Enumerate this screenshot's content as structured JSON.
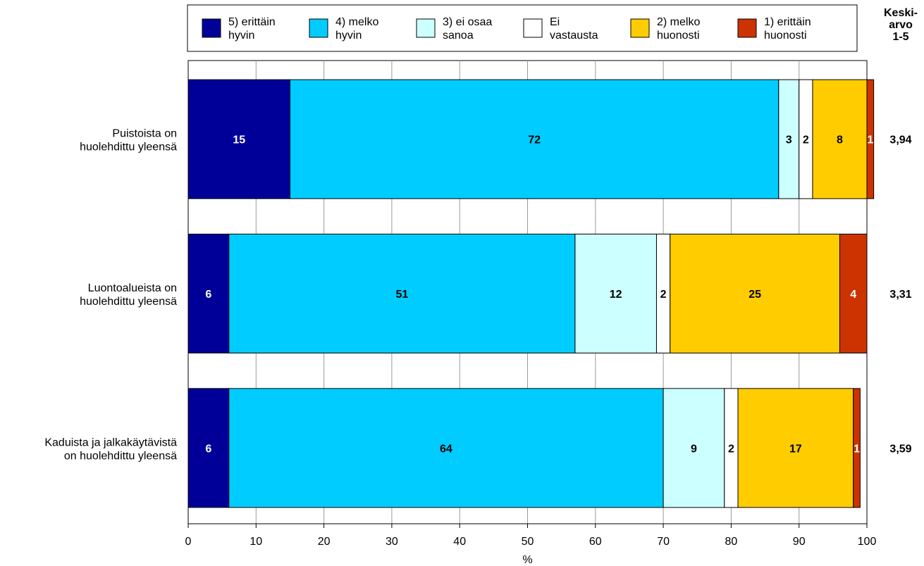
{
  "chart_data": {
    "type": "bar",
    "orientation": "horizontal",
    "stacked": true,
    "xlabel": "%",
    "xlim": [
      0,
      100
    ],
    "xticks": [
      "0",
      "10",
      "20",
      "30",
      "40",
      "50",
      "60",
      "70",
      "80",
      "90",
      "100"
    ],
    "grid": true,
    "legend_position": "top",
    "mean_header": [
      "Keski-",
      "arvo",
      "1-5"
    ],
    "categories": [
      [
        "Puistoista on",
        "huolehdittu yleensä"
      ],
      [
        "Luontoalueista on",
        "huolehdittu yleensä"
      ],
      [
        "Kaduista ja jalkakäytävistä",
        "on huolehdittu yleensä"
      ]
    ],
    "means": [
      "3,94",
      "3,31",
      "3,59"
    ],
    "series": [
      {
        "name": [
          "5) erittäin",
          "hyvin"
        ],
        "color": "#000099",
        "label_color": "#ffffff",
        "values": [
          15,
          6,
          6
        ],
        "labels": [
          "15",
          "6",
          "6"
        ]
      },
      {
        "name": [
          "4) melko",
          "hyvin"
        ],
        "color": "#00CCFF",
        "label_color": "#000000",
        "values": [
          72,
          51,
          64
        ],
        "labels": [
          "72",
          "51",
          "64"
        ]
      },
      {
        "name": [
          "3) ei osaa",
          "sanoa"
        ],
        "color": "#CCFFFF",
        "label_color": "#000000",
        "values": [
          3,
          12,
          9
        ],
        "labels": [
          "3",
          "12",
          "9"
        ]
      },
      {
        "name": [
          "Ei",
          "vastausta"
        ],
        "color": "#FFFFFF",
        "label_color": "#000000",
        "values": [
          2,
          2,
          2
        ],
        "labels": [
          "2",
          "2",
          "2"
        ]
      },
      {
        "name": [
          "2) melko",
          "huonosti"
        ],
        "color": "#FFCC00",
        "label_color": "#000000",
        "values": [
          8,
          25,
          17
        ],
        "labels": [
          "8",
          "25",
          "17"
        ]
      },
      {
        "name": [
          "1) erittäin",
          "huonosti"
        ],
        "color": "#CC3300",
        "label_color": "#ffffff",
        "values": [
          1,
          4,
          1
        ],
        "labels": [
          "1",
          "4",
          "1"
        ]
      }
    ]
  }
}
